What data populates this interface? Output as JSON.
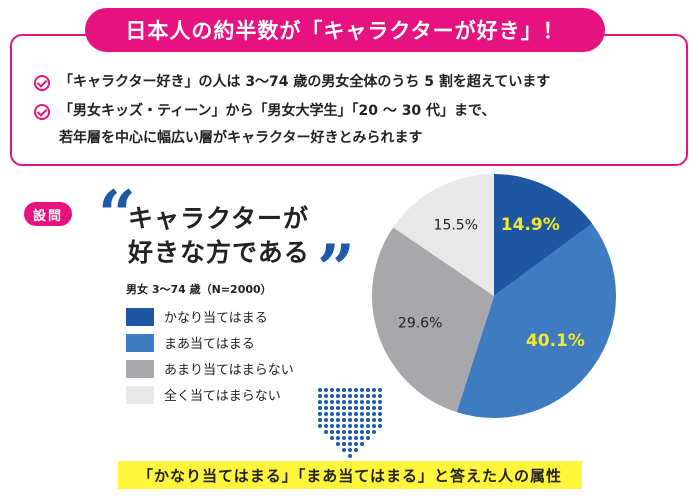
{
  "headline": "日本人の約半数が「キャラクターが好き」！",
  "bullets": [
    "「キャラクター好き」の人は 3〜74 歳の男女全体のうち 5 割を超えています",
    "「男女キッズ・ティーン」から「男女大学生」「20 〜 30 代」まで、",
    "若年層を中心に幅広い層がキャラクター好きとみられます"
  ],
  "question": {
    "tag": "設問",
    "line1": "キャラクターが",
    "line2": "好きな方である",
    "open_quote": "“",
    "close_quote": "”"
  },
  "sample_note": "男女 3〜74 歳（N=2000）",
  "colors": {
    "accent": "#e5127f",
    "highlight": "#fff53a",
    "quote": "#1d5aa8"
  },
  "chart_data": {
    "type": "pie",
    "start_angle": "12 o'clock, clockwise",
    "slices": [
      {
        "label": "かなり当てはまる",
        "value": 14.9,
        "display": "14.9%",
        "color": "#1f56a2",
        "label_color": "#f5e92a"
      },
      {
        "label": "まあ当てはまる",
        "value": 40.1,
        "display": "40.1%",
        "color": "#3f7bc0",
        "label_color": "#f5e92a"
      },
      {
        "label": "あまり当てはまらない",
        "value": 29.6,
        "display": "29.6%",
        "color": "#a8a8aa",
        "label_color": "#222222"
      },
      {
        "label": "全く当てはまらない",
        "value": 15.5,
        "display": "15.5%",
        "color": "#e8e8e8",
        "label_color": "#222222"
      }
    ],
    "legend_position": "left"
  },
  "footer_caption": "「かなり当てはまる」「まあ当てはまる」と答えた人の属性"
}
